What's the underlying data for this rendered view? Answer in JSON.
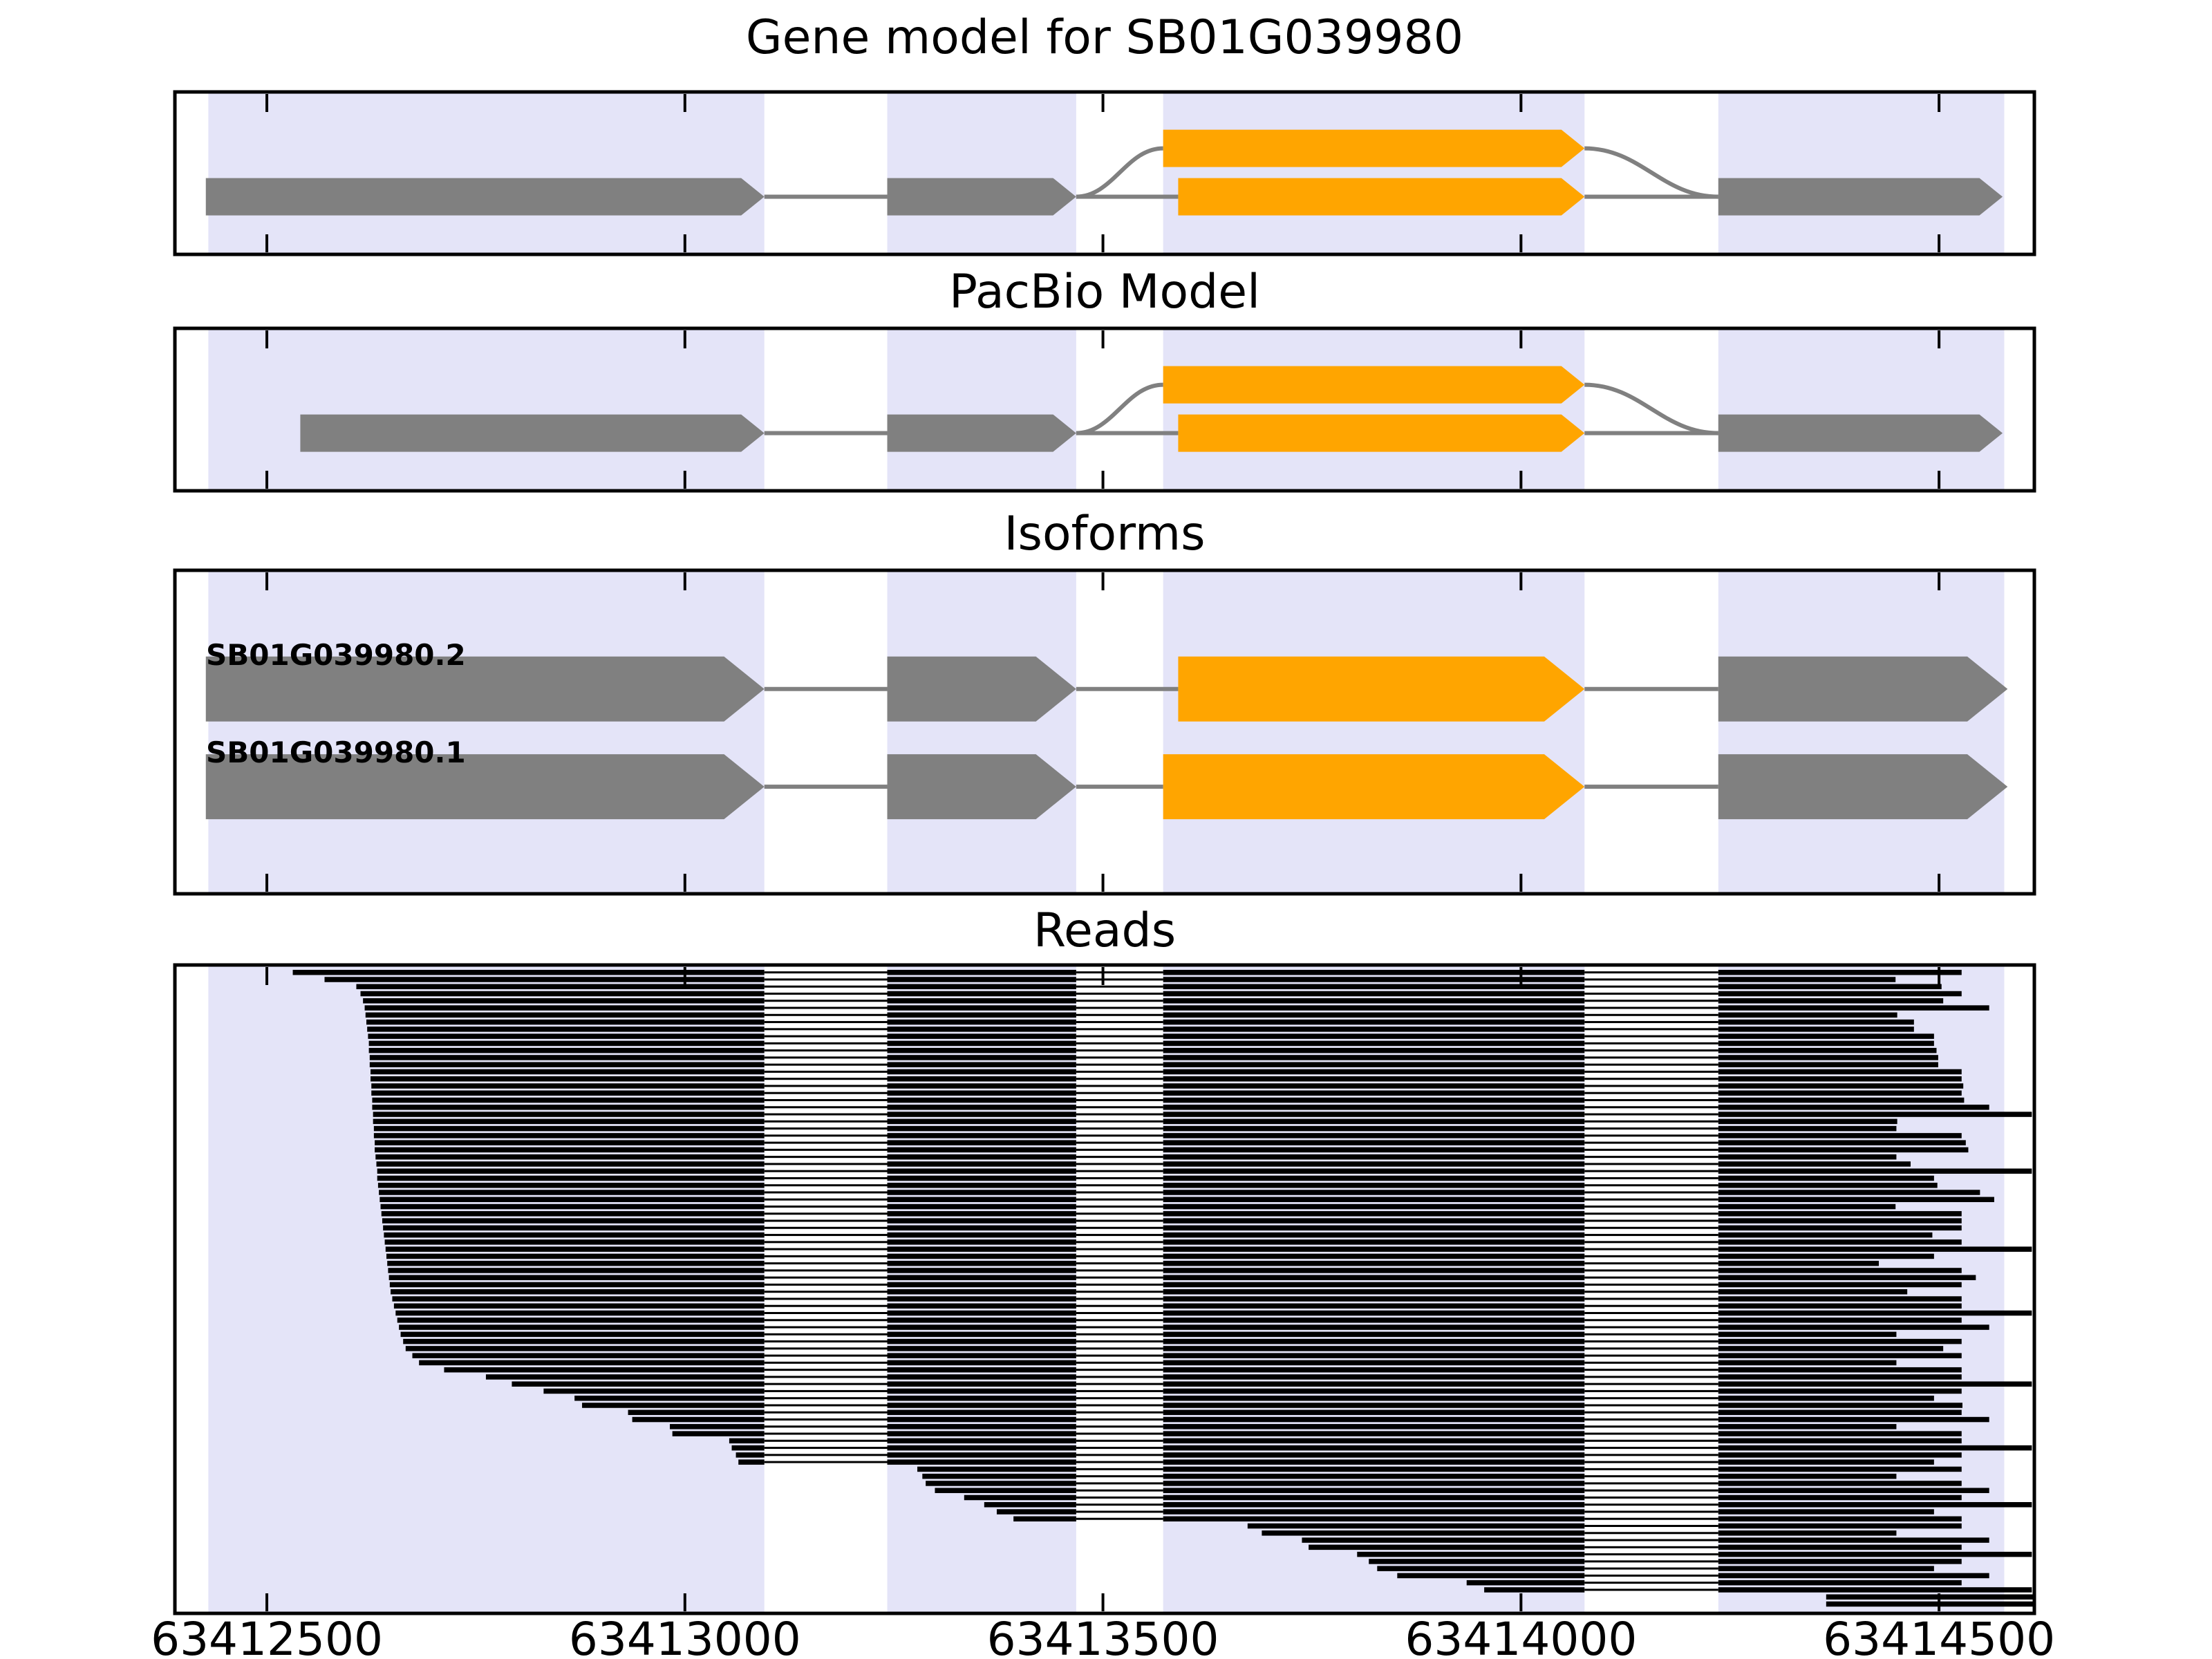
{
  "figure": {
    "panels": [
      {
        "id": "gene_model",
        "title": "Gene model for SB01G039980"
      },
      {
        "id": "pacbio_model",
        "title": "PacBio Model"
      },
      {
        "id": "isoforms",
        "title": "Isoforms"
      },
      {
        "id": "reads",
        "title": "Reads"
      }
    ]
  },
  "chart_data": {
    "type": "gene-model-genome-browser",
    "gene_id": "SB01G039980",
    "xlim": [
      63412390,
      63414614
    ],
    "x_ticks": [
      63412500,
      63413000,
      63413500,
      63414000,
      63414500
    ],
    "x_tick_labels": [
      "63412500",
      "63413000",
      "63413500",
      "63414000",
      "63414500"
    ],
    "grid": false,
    "colors": {
      "band": "#E4E4F8",
      "exon": "#808080",
      "alt_exon": "#FFA500",
      "intron_line": "#808080",
      "read": "#000000",
      "frame": "#000000",
      "background": "#FFFFFF",
      "text": "#000000"
    },
    "exon_bands": [
      [
        63412430,
        63413095
      ],
      [
        63413242,
        63413468
      ],
      [
        63413572,
        63414076
      ],
      [
        63414236,
        63414578
      ]
    ],
    "gene_model": {
      "exons_gray": [
        [
          63412427,
          63413095
        ],
        [
          63413242,
          63413468
        ],
        [
          63414236,
          63414576
        ]
      ],
      "exon_orange_upper": [
        63413572,
        63414076
      ],
      "exon_orange_main": [
        63413590,
        63414076
      ]
    },
    "pacbio_model": {
      "exons_gray": [
        [
          63412540,
          63413095
        ],
        [
          63413242,
          63413468
        ],
        [
          63414236,
          63414576
        ]
      ],
      "exon_orange_upper": [
        63413572,
        63414076
      ],
      "exon_orange_main": [
        63413590,
        63414076
      ]
    },
    "isoforms": [
      {
        "name": "SB01G039980.2",
        "exons_gray": [
          [
            63412427,
            63413095
          ],
          [
            63413242,
            63413468
          ],
          [
            63414236,
            63414582
          ]
        ],
        "exon_orange": [
          63413590,
          63414076
        ]
      },
      {
        "name": "SB01G039980.1",
        "exons_gray": [
          [
            63412427,
            63413095
          ],
          [
            63413242,
            63413468
          ],
          [
            63414236,
            63414582
          ]
        ],
        "exon_orange": [
          63413572,
          63414076
        ]
      }
    ],
    "reads": [
      [
        63412531,
        63414527
      ],
      [
        63412569,
        63414448
      ],
      [
        63412607,
        63414503
      ],
      [
        63412612,
        63414527
      ],
      [
        63412615,
        63414505
      ],
      [
        63412617,
        63414560
      ],
      [
        63412618,
        63414450
      ],
      [
        63412619,
        63414470
      ],
      [
        63412620,
        63414470
      ],
      [
        63412621,
        63414494
      ],
      [
        63412622,
        63414494
      ],
      [
        63412622,
        63414497
      ],
      [
        63412623,
        63414499
      ],
      [
        63412623,
        63414499
      ],
      [
        63412624,
        63414527
      ],
      [
        63412624,
        63414527
      ],
      [
        63412625,
        63414529
      ],
      [
        63412625,
        63414527
      ],
      [
        63412626,
        63414530
      ],
      [
        63412626,
        63414560
      ],
      [
        63412627,
        63414611
      ],
      [
        63412627,
        63414450
      ],
      [
        63412628,
        63414449
      ],
      [
        63412628,
        63414527
      ],
      [
        63412629,
        63414532
      ],
      [
        63412629,
        63414535
      ],
      [
        63412630,
        63414449
      ],
      [
        63412631,
        63414466
      ],
      [
        63412632,
        63414611
      ],
      [
        63412632,
        63414494
      ],
      [
        63412633,
        63414498
      ],
      [
        63412634,
        63414549
      ],
      [
        63412635,
        63414566
      ],
      [
        63412636,
        63414448
      ],
      [
        63412637,
        63414527
      ],
      [
        63412638,
        63414527
      ],
      [
        63412639,
        63414527
      ],
      [
        63412640,
        63414492
      ],
      [
        63412641,
        63414527
      ],
      [
        63412642,
        63414611
      ],
      [
        63412643,
        63414494
      ],
      [
        63412644,
        63414428
      ],
      [
        63412645,
        63414527
      ],
      [
        63412646,
        63414544
      ],
      [
        63412647,
        63414527
      ],
      [
        63412648,
        63414462
      ],
      [
        63412650,
        63414527
      ],
      [
        63412652,
        63414527
      ],
      [
        63412654,
        63414611
      ],
      [
        63412656,
        63414527
      ],
      [
        63412658,
        63414560
      ],
      [
        63412660,
        63414449
      ],
      [
        63412663,
        63414527
      ],
      [
        63412666,
        63414505
      ],
      [
        63412674,
        63414527
      ],
      [
        63412682,
        63414449
      ],
      [
        63412712,
        63414527
      ],
      [
        63412762,
        63414527
      ],
      [
        63412793,
        63414611
      ],
      [
        63412831,
        63414527
      ],
      [
        63412868,
        63414494
      ],
      [
        63412877,
        63414528
      ],
      [
        63412932,
        63414527
      ],
      [
        63412937,
        63414560
      ],
      [
        63412982,
        63414449
      ],
      [
        63412985,
        63414527
      ],
      [
        63413053,
        63414527
      ],
      [
        63413056,
        63414611
      ],
      [
        63413061,
        63414527
      ],
      [
        63413064,
        63414494
      ],
      [
        63413278,
        63414527
      ],
      [
        63413284,
        63414449
      ],
      [
        63413288,
        63414527
      ],
      [
        63413299,
        63414560
      ],
      [
        63413334,
        63414527
      ],
      [
        63413358,
        63414611
      ],
      [
        63413373,
        63414494
      ],
      [
        63413393,
        63414527
      ],
      [
        63413673,
        63414527
      ],
      [
        63413690,
        63414449
      ],
      [
        63413738,
        63414560
      ],
      [
        63413746,
        63414527
      ],
      [
        63413804,
        63414611
      ],
      [
        63413818,
        63414527
      ],
      [
        63413828,
        63414494
      ],
      [
        63413852,
        63414560
      ],
      [
        63413935,
        63414527
      ],
      [
        63413956,
        63414611
      ],
      [
        63414365,
        63414612
      ],
      [
        63414365,
        63414612
      ]
    ]
  }
}
